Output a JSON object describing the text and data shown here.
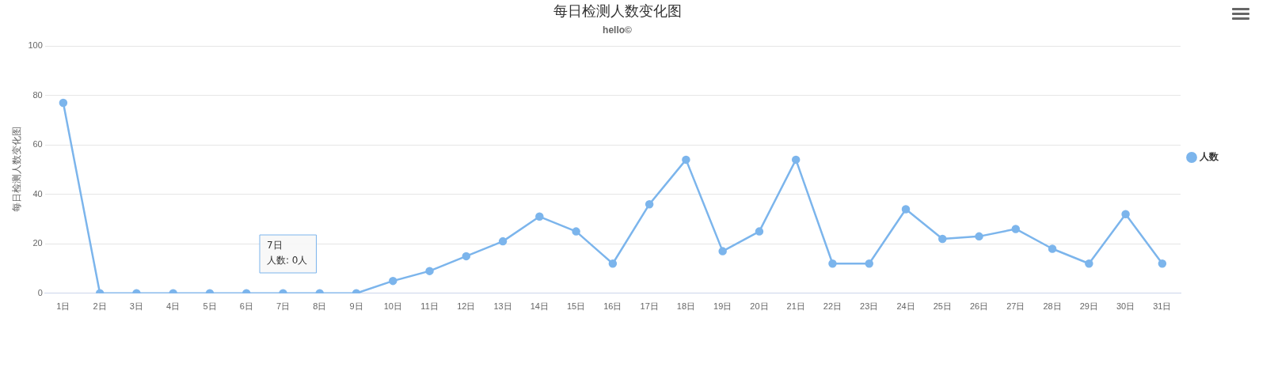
{
  "chart_data": {
    "type": "line",
    "title": "每日检测人数变化图",
    "subtitle": "hello©",
    "ylabel": "每日检测人数变化图",
    "categories": [
      "1日",
      "2日",
      "3日",
      "4日",
      "5日",
      "6日",
      "7日",
      "8日",
      "9日",
      "10日",
      "11日",
      "12日",
      "13日",
      "14日",
      "15日",
      "16日",
      "17日",
      "18日",
      "19日",
      "20日",
      "21日",
      "22日",
      "23日",
      "24日",
      "25日",
      "26日",
      "27日",
      "28日",
      "29日",
      "30日",
      "31日"
    ],
    "series": [
      {
        "name": "人数",
        "color": "#7cb5ec",
        "values": [
          77,
          0,
          0,
          0,
          0,
          0,
          0,
          0,
          0,
          5,
          9,
          15,
          21,
          31,
          25,
          12,
          36,
          54,
          17,
          25,
          54,
          12,
          12,
          34,
          22,
          23,
          26,
          18,
          12,
          32,
          12
        ]
      }
    ],
    "ylim": [
      0,
      100
    ],
    "yticks": [
      0,
      20,
      40,
      60,
      80,
      100
    ],
    "grid": "y",
    "legend": "right",
    "marker": "circle",
    "line_style": "solid",
    "annotations": [
      "7日",
      "人数: 0人"
    ]
  }
}
